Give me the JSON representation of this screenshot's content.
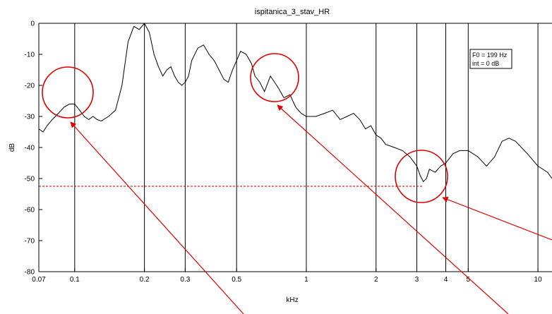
{
  "chart_data": {
    "type": "line",
    "title": "ispitanica_3_stav_HR",
    "xlabel": "kHz",
    "ylabel": "dB",
    "x_scale": "log",
    "xlim": [
      0.07,
      11.5
    ],
    "ylim": [
      -80,
      0
    ],
    "x_ticks": [
      0.07,
      0.1,
      0.2,
      0.3,
      0.5,
      1,
      2,
      3,
      4,
      5,
      10
    ],
    "x_tick_labels": [
      "0.07",
      "0.1",
      "0.2",
      "0.3",
      "0.5",
      "1",
      "2",
      "3",
      "4",
      "5",
      "10"
    ],
    "y_ticks": [
      0,
      -10,
      -20,
      -30,
      -40,
      -50,
      -60,
      -70,
      -80
    ],
    "y_tick_labels": [
      "0",
      "-10",
      "-20",
      "-30",
      "-40",
      "-50",
      "-60",
      "-70",
      "-80"
    ],
    "vertical_gridlines_at": [
      0.1,
      0.2,
      0.3,
      0.5,
      1,
      2,
      3,
      4,
      5,
      10
    ],
    "reference_line": {
      "y": -52.5,
      "x_end": 3.2,
      "style": "dashed",
      "color": "#c00000"
    },
    "legend_lines": [
      "F0 = 199 Hz",
      "int = 0 dB"
    ],
    "legend_position": "top-right",
    "series": [
      {
        "color": "#000000",
        "points": [
          [
            0.07,
            -34
          ],
          [
            0.073,
            -35
          ],
          [
            0.076,
            -33
          ],
          [
            0.08,
            -31
          ],
          [
            0.085,
            -29
          ],
          [
            0.09,
            -27
          ],
          [
            0.095,
            -26
          ],
          [
            0.1,
            -26
          ],
          [
            0.105,
            -28
          ],
          [
            0.11,
            -30
          ],
          [
            0.115,
            -31
          ],
          [
            0.12,
            -30
          ],
          [
            0.125,
            -31
          ],
          [
            0.13,
            -31.5
          ],
          [
            0.14,
            -30
          ],
          [
            0.15,
            -28
          ],
          [
            0.16,
            -20
          ],
          [
            0.17,
            -6
          ],
          [
            0.18,
            -1
          ],
          [
            0.19,
            -2
          ],
          [
            0.2,
            0
          ],
          [
            0.21,
            -3
          ],
          [
            0.22,
            -10
          ],
          [
            0.23,
            -14
          ],
          [
            0.24,
            -17
          ],
          [
            0.25,
            -15
          ],
          [
            0.26,
            -14
          ],
          [
            0.27,
            -17
          ],
          [
            0.28,
            -19
          ],
          [
            0.29,
            -20
          ],
          [
            0.3,
            -19
          ],
          [
            0.31,
            -17
          ],
          [
            0.32,
            -12
          ],
          [
            0.34,
            -8
          ],
          [
            0.36,
            -7
          ],
          [
            0.38,
            -10
          ],
          [
            0.4,
            -12
          ],
          [
            0.42,
            -15
          ],
          [
            0.44,
            -18
          ],
          [
            0.46,
            -19
          ],
          [
            0.48,
            -15
          ],
          [
            0.5,
            -12
          ],
          [
            0.52,
            -9
          ],
          [
            0.55,
            -10
          ],
          [
            0.58,
            -13
          ],
          [
            0.6,
            -17
          ],
          [
            0.63,
            -19
          ],
          [
            0.66,
            -22
          ],
          [
            0.7,
            -17
          ],
          [
            0.73,
            -19
          ],
          [
            0.76,
            -21
          ],
          [
            0.8,
            -24
          ],
          [
            0.85,
            -23
          ],
          [
            0.9,
            -27
          ],
          [
            0.95,
            -29
          ],
          [
            1.0,
            -30
          ],
          [
            1.1,
            -30
          ],
          [
            1.2,
            -29
          ],
          [
            1.3,
            -28
          ],
          [
            1.4,
            -31
          ],
          [
            1.5,
            -30
          ],
          [
            1.6,
            -29
          ],
          [
            1.7,
            -31
          ],
          [
            1.8,
            -34
          ],
          [
            1.9,
            -33
          ],
          [
            2.0,
            -36
          ],
          [
            2.1,
            -37
          ],
          [
            2.2,
            -39
          ],
          [
            2.4,
            -40
          ],
          [
            2.6,
            -41
          ],
          [
            2.8,
            -43
          ],
          [
            3.0,
            -46
          ],
          [
            3.1,
            -49
          ],
          [
            3.2,
            -51
          ],
          [
            3.3,
            -50
          ],
          [
            3.4,
            -47
          ],
          [
            3.6,
            -48
          ],
          [
            3.8,
            -46
          ],
          [
            4.0,
            -45
          ],
          [
            4.3,
            -42
          ],
          [
            4.6,
            -41
          ],
          [
            5.0,
            -41
          ],
          [
            5.5,
            -43
          ],
          [
            6.0,
            -46
          ],
          [
            6.5,
            -43
          ],
          [
            7.0,
            -38
          ],
          [
            7.5,
            -37
          ],
          [
            8.0,
            -38
          ],
          [
            9.0,
            -42
          ],
          [
            10.0,
            -46
          ],
          [
            11.0,
            -48
          ],
          [
            11.5,
            -50
          ]
        ]
      }
    ]
  }
}
